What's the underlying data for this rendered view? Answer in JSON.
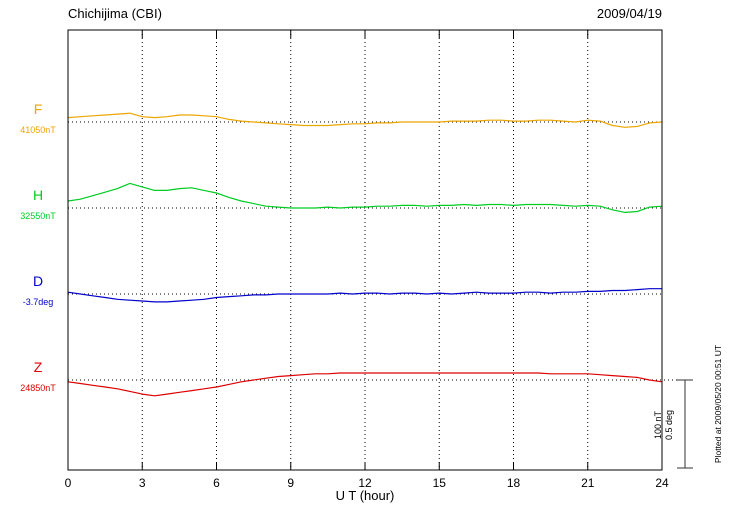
{
  "header": {
    "title": "Chichijima (CBI)",
    "date": "2009/04/19"
  },
  "plotted_at": "Plotted at 2009/05/20 00:51 UT",
  "scale_bar": {
    "line1": "100 nT",
    "line2": "0.5 deg"
  },
  "colors": {
    "axis": "#000000",
    "background": "#ffffff"
  },
  "chart_data": {
    "type": "line",
    "title": "Chichijima (CBI)",
    "date": "2009/04/19",
    "xlabel": "U T (hour)",
    "x_range": [
      0,
      24
    ],
    "x_ticks": [
      0,
      3,
      6,
      9,
      12,
      15,
      18,
      21,
      24
    ],
    "x_step_hours": 0.5,
    "grid": "vertical-dotted-every-3h",
    "legend_position": "left-of-axis",
    "scale": {
      "nT_per_div": 100,
      "deg_per_div": 0.5
    },
    "series": [
      {
        "name": "F",
        "unit": "nT",
        "base_label": "41050nT",
        "base_value": 41050,
        "color": "#eda500",
        "offsets": [
          5,
          6,
          7,
          8,
          9,
          10,
          6,
          5,
          6,
          8,
          8,
          7,
          6,
          3,
          1,
          0,
          -1,
          -2,
          -3,
          -4,
          -4,
          -4,
          -3,
          -2,
          -2,
          -1,
          -1,
          0,
          0,
          0,
          0,
          1,
          1,
          1,
          2,
          2,
          1,
          1,
          2,
          2,
          1,
          0,
          2,
          1,
          -4,
          -6,
          -5,
          -1,
          0
        ]
      },
      {
        "name": "H",
        "unit": "nT",
        "base_label": "32550nT",
        "base_value": 32550,
        "color": "#00cc22",
        "offsets": [
          8,
          10,
          14,
          18,
          22,
          28,
          24,
          20,
          20,
          22,
          23,
          20,
          17,
          12,
          8,
          5,
          2,
          1,
          0,
          0,
          0,
          1,
          0,
          1,
          1,
          2,
          2,
          3,
          3,
          2,
          3,
          3,
          4,
          3,
          4,
          4,
          3,
          4,
          4,
          4,
          3,
          2,
          3,
          2,
          -2,
          -5,
          -4,
          1,
          2
        ]
      },
      {
        "name": "D",
        "unit": "deg",
        "base_label": "-3.7deg",
        "base_value": -3.7,
        "color": "#0000cc",
        "offsets": [
          0.01,
          0.0,
          -0.01,
          -0.02,
          -0.03,
          -0.035,
          -0.04,
          -0.045,
          -0.045,
          -0.04,
          -0.035,
          -0.03,
          -0.02,
          -0.015,
          -0.01,
          -0.005,
          -0.005,
          0,
          0,
          0,
          0,
          0,
          0.005,
          0,
          0.005,
          0.005,
          0,
          0.005,
          0.005,
          0,
          0.005,
          0,
          0.005,
          0.01,
          0.005,
          0.005,
          0.005,
          0.01,
          0.01,
          0.005,
          0.01,
          0.01,
          0.015,
          0.015,
          0.02,
          0.02,
          0.025,
          0.03,
          0.03
        ]
      },
      {
        "name": "Z",
        "unit": "nT",
        "base_label": "24850nT",
        "base_value": 24850,
        "color": "#dd0000",
        "offsets": [
          -2,
          -4,
          -6,
          -8,
          -10,
          -13,
          -16,
          -18,
          -16,
          -14,
          -12,
          -10,
          -8,
          -5,
          -2,
          0,
          2,
          4,
          5,
          6,
          7,
          7,
          8,
          8,
          8,
          8,
          8,
          8,
          8,
          8,
          8,
          8,
          8,
          8,
          8,
          8,
          8,
          8,
          8,
          7,
          7,
          7,
          7,
          6,
          5,
          4,
          3,
          0,
          -2
        ]
      }
    ]
  }
}
